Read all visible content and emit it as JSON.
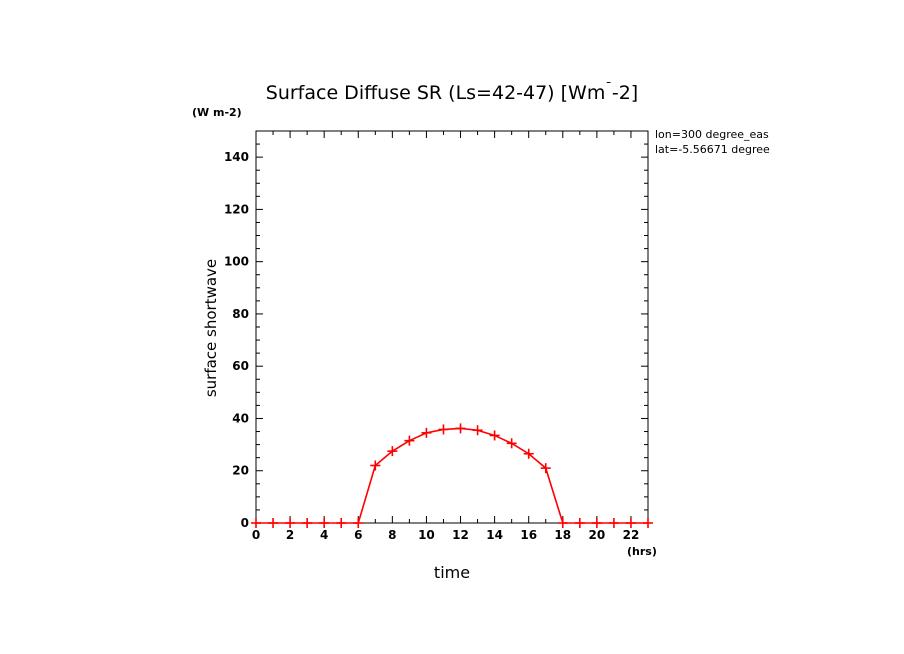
{
  "chart_data": {
    "type": "line",
    "title": "Surface Diffuse SR (Ls=42-47) [Wm^-2]",
    "title_main": "Surface Diffuse SR (Ls=42-47) [Wm",
    "title_tail": "-2]",
    "y_unit": "(W m-2)",
    "x_unit": "(hrs)",
    "xlabel": "time",
    "ylabel": "surface shortwave",
    "annotations": [
      "lon=300 degree_eas",
      "lat=-5.56671 degree"
    ],
    "xlim": [
      0,
      23
    ],
    "ylim": [
      0,
      150
    ],
    "x_ticks": [
      0,
      2,
      4,
      6,
      8,
      10,
      12,
      14,
      16,
      18,
      20,
      22
    ],
    "y_ticks": [
      0,
      20,
      40,
      60,
      80,
      100,
      120,
      140
    ],
    "series": [
      {
        "name": "surface diffuse SR",
        "color": "#ff0000",
        "x": [
          0,
          1,
          2,
          3,
          4,
          5,
          6,
          7,
          8,
          9,
          10,
          11,
          12,
          13,
          14,
          15,
          16,
          17,
          18,
          19,
          20,
          21,
          22,
          23
        ],
        "values": [
          0,
          0,
          0,
          0,
          0,
          0,
          0,
          22,
          27.5,
          31.5,
          34.5,
          35.8,
          36.2,
          35.5,
          33.5,
          30.5,
          26.5,
          21,
          0,
          0,
          0,
          0,
          0,
          0
        ]
      }
    ]
  }
}
